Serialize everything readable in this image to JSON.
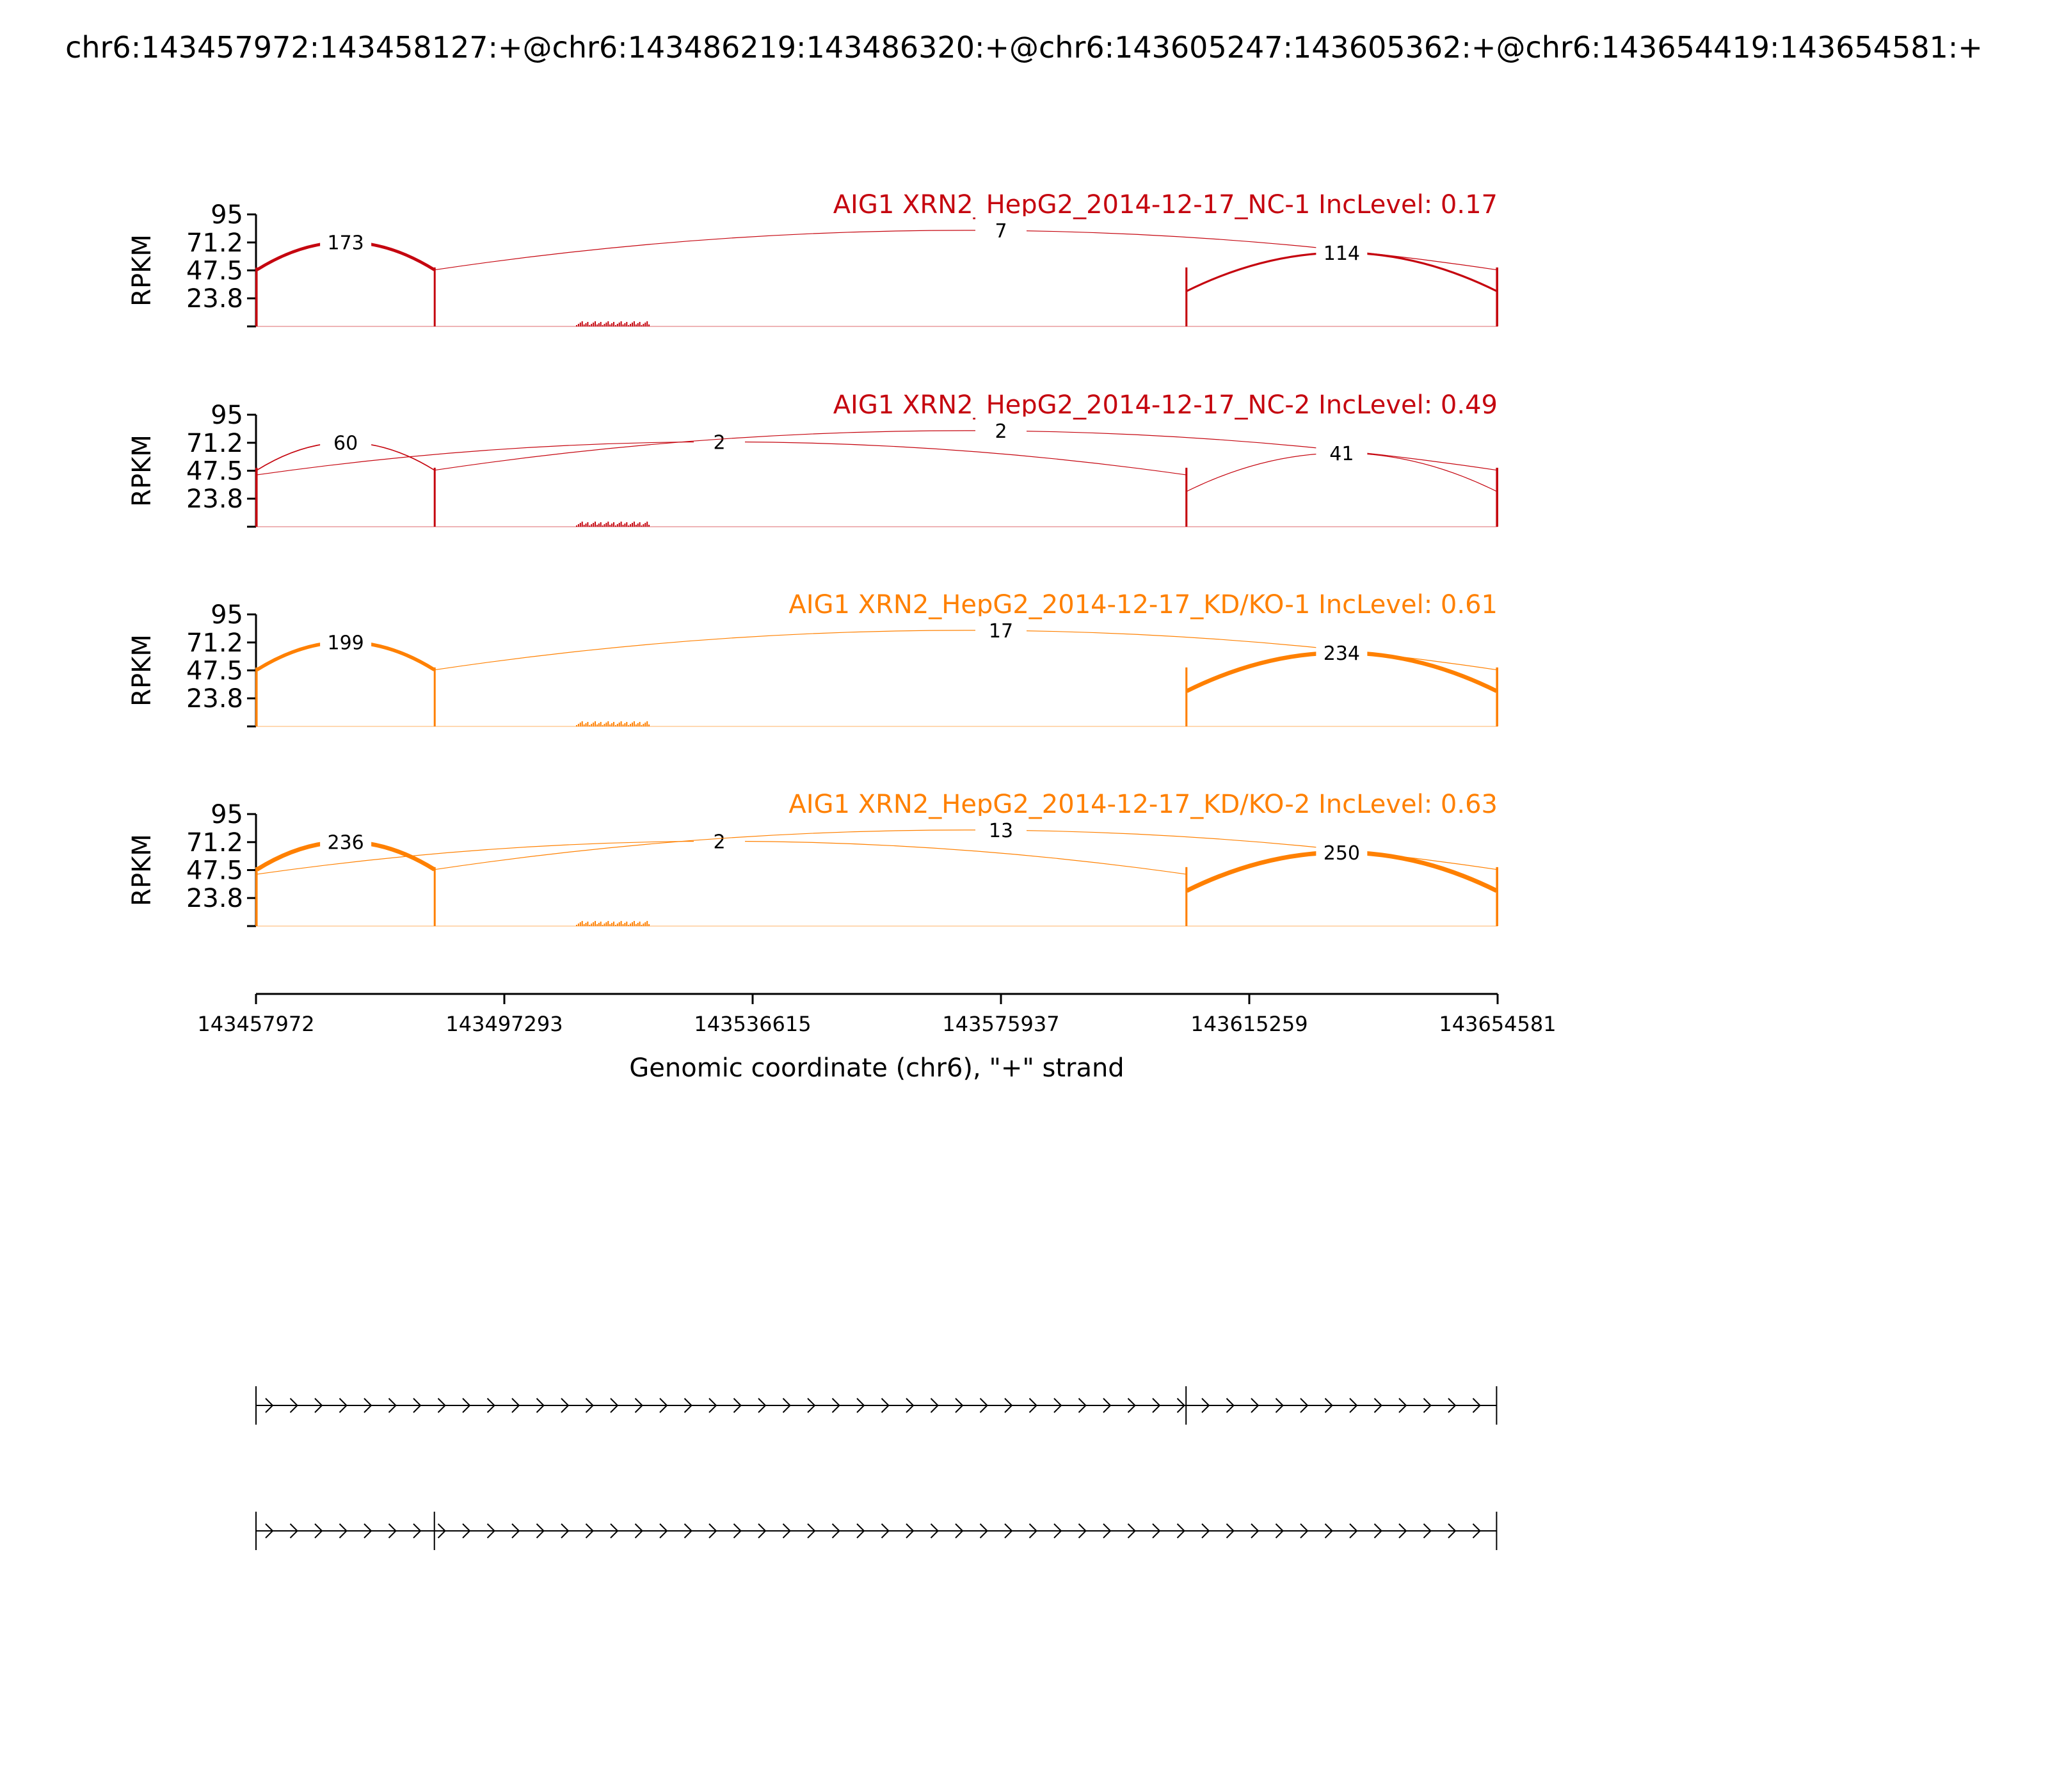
{
  "title": "chr6:143457972:143458127:+@chr6:143486219:143486320:+@chr6:143605247:143605362:+@chr6:143654419:143654581:+",
  "colors": {
    "nc": "#c5050f",
    "kd": "#ff8000",
    "axis": "#000000",
    "gene": "#000000"
  },
  "chart_data": {
    "type": "sashimi",
    "ylabel": "RPKM",
    "yticks": [
      "95",
      "71.2",
      "47.5",
      "23.8"
    ],
    "ylim": [
      0,
      95
    ],
    "xlabel": "Genomic coordinate (chr6), \"+\" strand",
    "xlim": [
      143457972,
      143654581
    ],
    "xticks": [
      "143457972",
      "143497293",
      "143536615",
      "143575937",
      "143615259",
      "143654581"
    ],
    "exons": [
      {
        "start": 143457972,
        "end": 143458127
      },
      {
        "start": 143486219,
        "end": 143486320
      },
      {
        "start": 143605247,
        "end": 143605362
      },
      {
        "start": 143654419,
        "end": 143654581
      }
    ],
    "tracks": [
      {
        "label": "AIG1 XRN2_HepG2_2014-12-17_NC-1 IncLevel: 0.17",
        "color_key": "nc",
        "junctions": [
          {
            "from": 143458127,
            "to": 143486219,
            "count": "173"
          },
          {
            "from": 143486320,
            "to": 143654419,
            "count": "7"
          },
          {
            "from": 143605362,
            "to": 143654419,
            "count": "114"
          }
        ]
      },
      {
        "label": "AIG1 XRN2_HepG2_2014-12-17_NC-2 IncLevel: 0.49",
        "color_key": "nc",
        "junctions": [
          {
            "from": 143458127,
            "to": 143486219,
            "count": "60"
          },
          {
            "from": 143458127,
            "to": 143605247,
            "count": "2"
          },
          {
            "from": 143486320,
            "to": 143654419,
            "count": "2"
          },
          {
            "from": 143605362,
            "to": 143654419,
            "count": "41"
          }
        ]
      },
      {
        "label": "AIG1 XRN2_HepG2_2014-12-17_KD/KO-1 IncLevel: 0.61",
        "color_key": "kd",
        "junctions": [
          {
            "from": 143458127,
            "to": 143486219,
            "count": "199"
          },
          {
            "from": 143486320,
            "to": 143654419,
            "count": "17"
          },
          {
            "from": 143605362,
            "to": 143654419,
            "count": "234"
          }
        ]
      },
      {
        "label": "AIG1 XRN2_HepG2_2014-12-17_KD/KO-2 IncLevel: 0.63",
        "color_key": "kd",
        "junctions": [
          {
            "from": 143458127,
            "to": 143486219,
            "count": "236"
          },
          {
            "from": 143458127,
            "to": 143605247,
            "count": "2"
          },
          {
            "from": 143486320,
            "to": 143654419,
            "count": "13"
          },
          {
            "from": 143605362,
            "to": 143654419,
            "count": "250"
          }
        ]
      }
    ],
    "isoforms": [
      {
        "exons": [
          143457972,
          143605247,
          143654419
        ]
      },
      {
        "exons": [
          143457972,
          143486219,
          143654419
        ]
      }
    ]
  }
}
